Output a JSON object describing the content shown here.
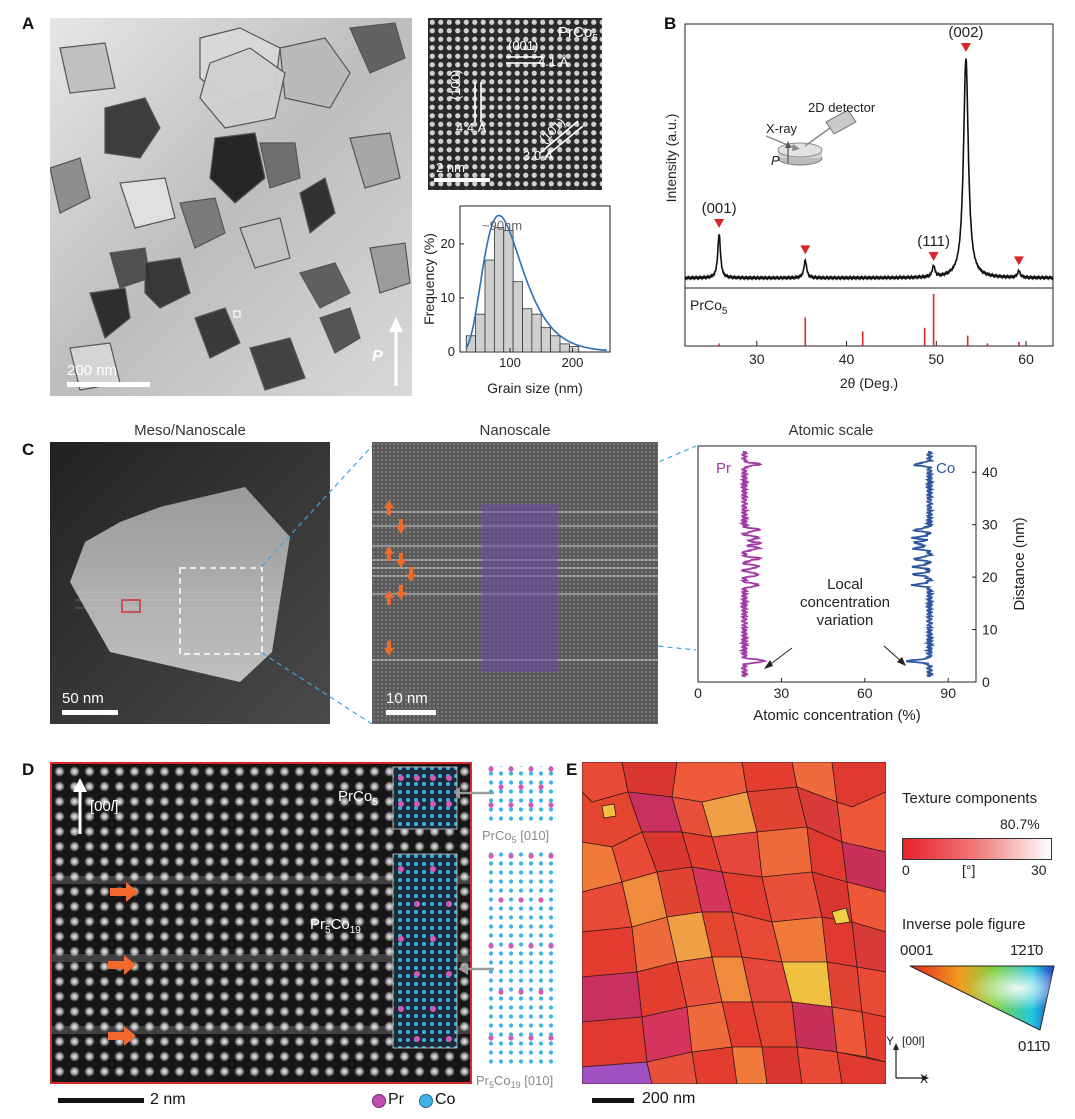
{
  "panels": {
    "A": {
      "label": "A",
      "tem_scalebar": "200 nm",
      "polarization": "P",
      "hrtem": {
        "phase": "PrCo",
        "phase_sub": "5",
        "plane_001": "(001)",
        "spacing_001": "4.1 Å",
        "plane_100": "(100)",
        "spacing_100": "4.4 Å",
        "plane_101": "(101)",
        "spacing_101": "3.0 Å",
        "scalebar": "2 nm"
      },
      "hist_annotation": "~90nm"
    },
    "B": {
      "label": "B"
    },
    "C": {
      "label": "C",
      "title_meso": "Meso/Nanoscale",
      "title_nano": "Nanoscale",
      "title_atomic": "Atomic scale",
      "scalebar_meso": "50 nm",
      "scalebar_nano": "10 nm"
    },
    "D": {
      "label": "D",
      "direction": "[00",
      "direction_l": "l",
      "direction_close": "]",
      "phase1": "PrCo",
      "phase1_sub": "5",
      "phase2_a": "Pr",
      "phase2_sub1": "5",
      "phase2_b": "Co",
      "phase2_sub2": "19",
      "model1": "PrCo",
      "model1_sub": "5",
      "model1_axis": " [010]",
      "model2_a": "Pr",
      "model2_sub1": "5",
      "model2_b": "Co",
      "model2_sub2": "19",
      "model2_axis": " [010]",
      "scalebar": "2 nm",
      "legend_pr": "Pr",
      "legend_co": "Co"
    },
    "E": {
      "label": "E",
      "texture_title": "Texture components",
      "texture_pct": "80.7%",
      "cbar_min": "0",
      "cbar_unit": "[°]",
      "cbar_max": "30",
      "ipf_title": "Inverse pole figure",
      "ipf_0001": "0001",
      "ipf_1210": "1̄21̄0",
      "ipf_0110": "011̄0",
      "axis_y": "Y",
      "axis_y_dir": "[00l]",
      "axis_x": "X",
      "scalebar": "200 nm"
    }
  },
  "chart_data": [
    {
      "id": "grain-size-histogram",
      "type": "bar",
      "xlabel": "Grain size (nm)",
      "ylabel": "Frequency (%)",
      "xlim": [
        20,
        260
      ],
      "ylim": [
        0,
        27
      ],
      "xticks": [
        100,
        200
      ],
      "yticks": [
        0,
        10,
        20
      ],
      "bin_width": 15,
      "bin_centers": [
        37.5,
        52.5,
        67.5,
        82.5,
        97.5,
        112.5,
        127.5,
        142.5,
        157.5,
        172.5,
        187.5,
        202.5
      ],
      "values": [
        3,
        7,
        17,
        23,
        22.5,
        13,
        8,
        7,
        4.5,
        3,
        1.5,
        1
      ],
      "fit_curve": "lognormal",
      "annotation": "~90nm"
    },
    {
      "id": "xrd-pattern",
      "type": "line",
      "xlabel": "2θ (Deg.)",
      "ylabel": "Intensity (a.u.)",
      "xlim": [
        22,
        63
      ],
      "xticks": [
        30,
        40,
        50,
        60
      ],
      "peaks": [
        {
          "two_theta": 25.8,
          "intensity": 0.2,
          "label": "(001)"
        },
        {
          "two_theta": 35.4,
          "intensity": 0.08,
          "label": ""
        },
        {
          "two_theta": 49.7,
          "intensity": 0.05,
          "label": "(111)"
        },
        {
          "two_theta": 53.3,
          "intensity": 1.0,
          "label": "(002)"
        },
        {
          "two_theta": 59.2,
          "intensity": 0.03,
          "label": ""
        }
      ],
      "reference_label": "PrCo",
      "reference_label_sub": "5",
      "reference_lines": [
        {
          "two_theta": 25.8,
          "intensity": 0.05
        },
        {
          "two_theta": 35.4,
          "intensity": 0.55
        },
        {
          "two_theta": 41.8,
          "intensity": 0.28
        },
        {
          "two_theta": 48.7,
          "intensity": 0.35
        },
        {
          "two_theta": 49.7,
          "intensity": 1.0
        },
        {
          "two_theta": 53.5,
          "intensity": 0.2
        },
        {
          "two_theta": 55.7,
          "intensity": 0.05
        },
        {
          "two_theta": 59.2,
          "intensity": 0.08
        }
      ],
      "inset_labels": [
        "2D detector",
        "X-ray",
        "P"
      ]
    },
    {
      "id": "atomic-concentration-profile",
      "type": "line",
      "xlabel": "Atomic concentration (%)",
      "ylabel": "Distance (nm)",
      "xlim": [
        0,
        100
      ],
      "ylim": [
        0,
        45
      ],
      "xticks": [
        0,
        30,
        60,
        90
      ],
      "yticks": [
        0,
        10,
        20,
        30,
        40
      ],
      "series": [
        {
          "name": "Pr",
          "color": "#a23aa5",
          "baseline": 16.7
        },
        {
          "name": "Co",
          "color": "#2c56a0",
          "baseline": 83.3
        }
      ],
      "annotation": "Local concentration variation"
    }
  ],
  "colors": {
    "frame_red": "#d8282b",
    "arrow_orange": "#ef6a2c",
    "pr_purple": "#a23aa5",
    "co_blue": "#2c56a0",
    "marker_red": "#d8282b",
    "dashed_cyan": "#3aa6d8"
  }
}
